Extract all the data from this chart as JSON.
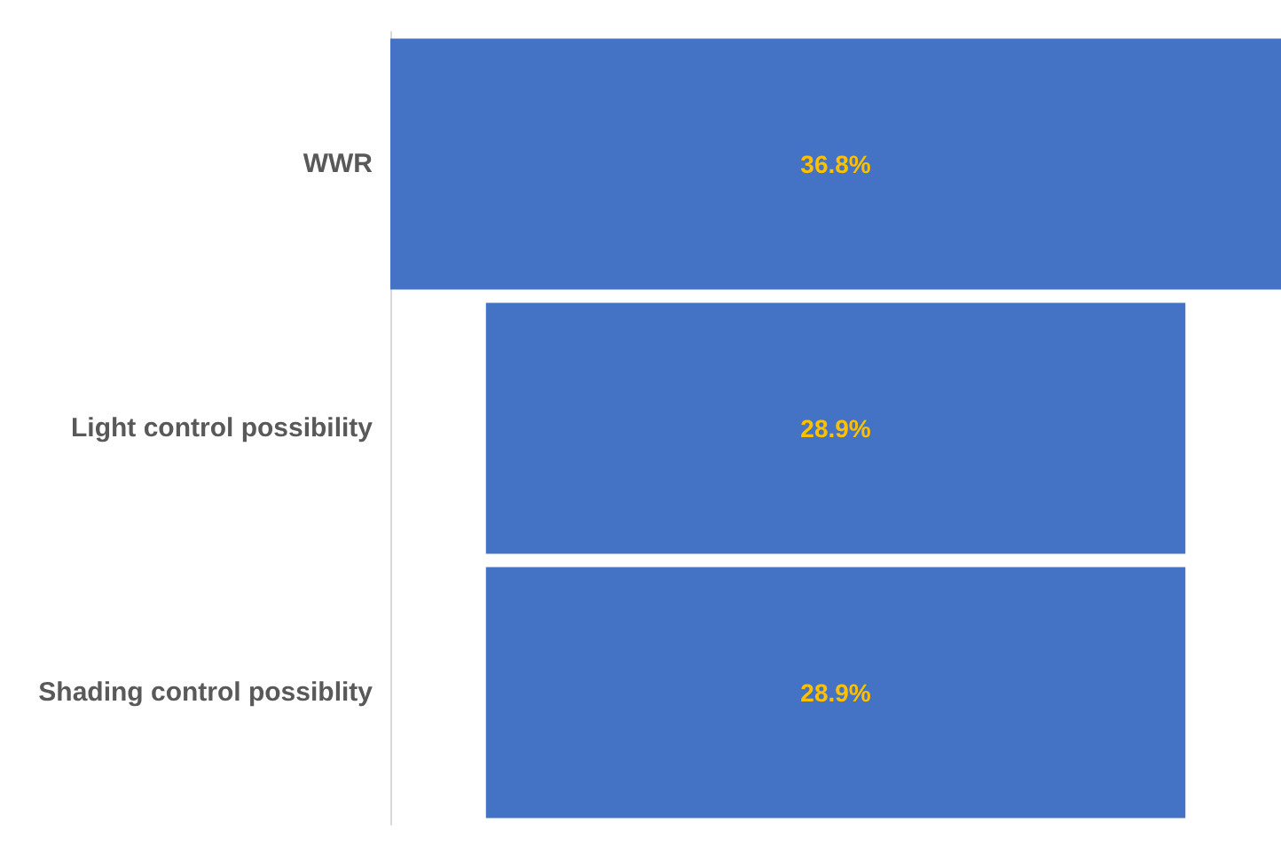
{
  "chart_data": {
    "type": "other",
    "categories": [
      "WWR",
      "Light control possibility",
      "Shading control possiblity"
    ],
    "values": [
      36.8,
      28.9,
      28.9
    ],
    "color": "#4472c4",
    "value_labels": [
      "36.8%",
      "28.9%",
      "28.9%"
    ]
  }
}
